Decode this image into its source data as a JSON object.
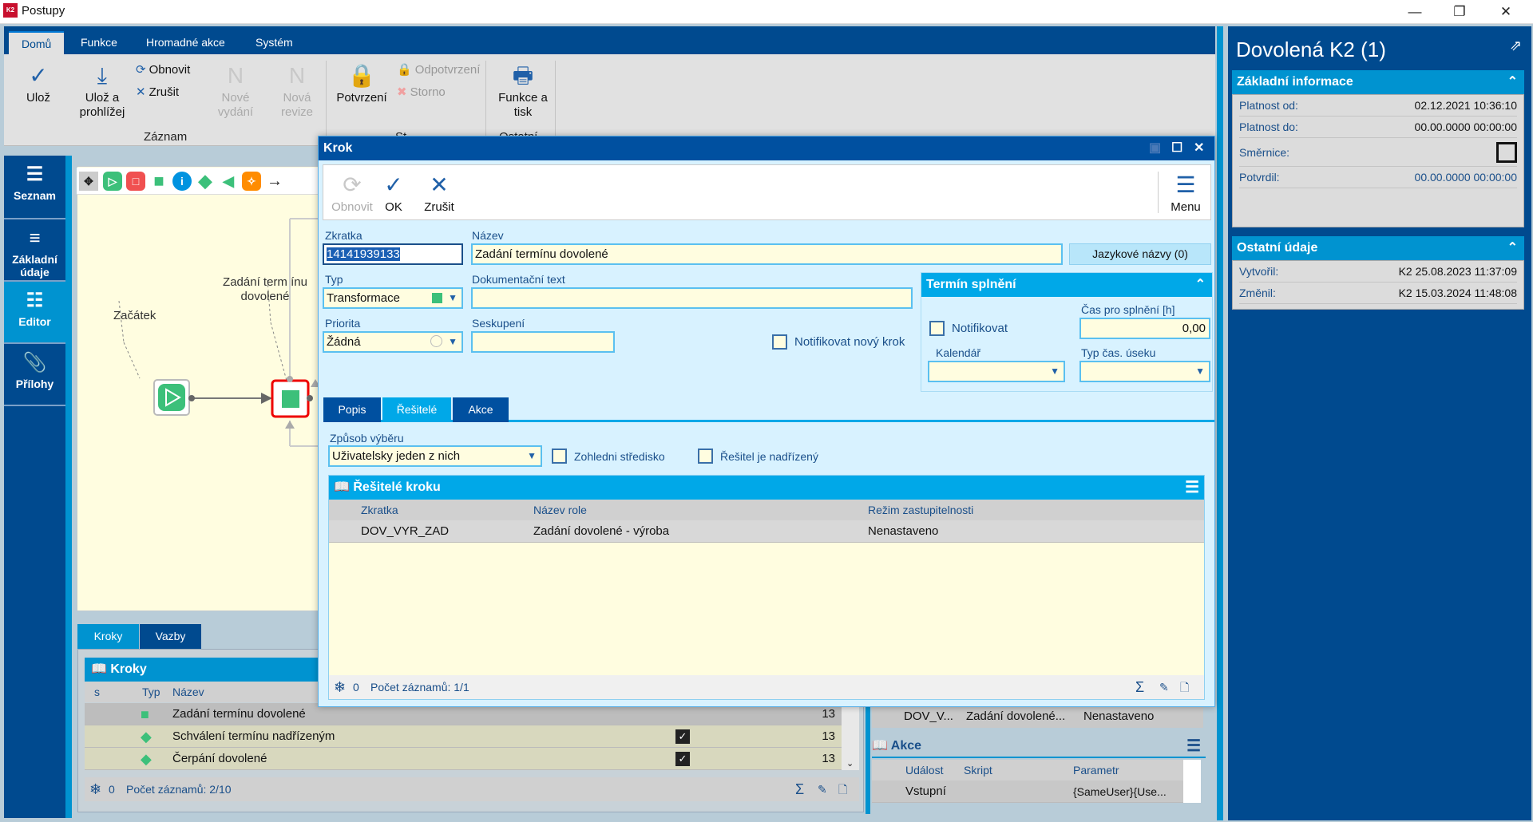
{
  "window": {
    "title": "Postupy",
    "logo": "K2"
  },
  "ribbon": {
    "tabs": [
      "Domů",
      "Funkce",
      "Hromadné akce",
      "Systém"
    ],
    "save": "Ulož",
    "save_view": [
      "Ulož a",
      "prohlížej"
    ],
    "refresh": "Obnovit",
    "cancel": "Zrušit",
    "new_edition": [
      "Nové",
      "vydání"
    ],
    "new_revision": [
      "Nová",
      "revize"
    ],
    "group_record": "Záznam",
    "confirm": "Potvrzení",
    "unconfirm": "Odpotvrzení",
    "storno": "Storno",
    "group_status": "St",
    "print": [
      "Funkce a",
      "tisk"
    ],
    "group_other": "Ostatní"
  },
  "sidebar": {
    "items": [
      {
        "label": "Seznam",
        "icon": "list-icon"
      },
      {
        "label": "Základní údaje",
        "icon": "bullet-list-icon"
      },
      {
        "label": "Editor",
        "icon": "tree-icon",
        "active": true
      },
      {
        "label": "Přílohy",
        "icon": "paperclip-icon"
      }
    ]
  },
  "diagram": {
    "nodes": [
      {
        "label": "Začátek",
        "type": "start"
      },
      {
        "label": "Zadání term ínu dovolené",
        "type": "transformation",
        "selected": true
      }
    ]
  },
  "bottom": {
    "tabs": [
      "Kroky",
      "Vazby"
    ],
    "grid_title": "Kroky",
    "columns": [
      "s",
      "",
      "Typ",
      "Název"
    ],
    "rows": [
      {
        "name": "Zadání termínu dovolené",
        "type": "square",
        "checked": false,
        "value": "13"
      },
      {
        "name": "Schválení termínu nadřízeným",
        "type": "diamond",
        "checked": true,
        "value": "13"
      },
      {
        "name": "Čerpání dovolené",
        "type": "diamond",
        "checked": true,
        "value": "13"
      }
    ],
    "filter_count": "0",
    "record_count": "Počet záznamů: 2/10"
  },
  "behind": {
    "row": [
      "DOV_V...",
      "Zadání dovolené...",
      "Nenastaveno"
    ],
    "akce_title": "Akce",
    "akce_columns": [
      "Událost",
      "Skript",
      "Parametr"
    ],
    "akce_row": [
      "Vstupní",
      "",
      "{SameUser}{Use..."
    ]
  },
  "right_panel": {
    "title": "Dovolená K2 (1)",
    "basic": {
      "title": "Základní informace",
      "platnost_od_label": "Platnost od:",
      "platnost_od": "02.12.2021 10:36:10",
      "platnost_do_label": "Platnost do:",
      "platnost_do": "00.00.0000 00:00:00",
      "smernice_label": "Směrnice:",
      "smernice": false,
      "potvrdil_label": "Potvrdil:",
      "potvrdil": "00.00.0000 00:00:00"
    },
    "other": {
      "title": "Ostatní údaje",
      "vytvoril_label": "Vytvořil:",
      "vytvoril": "K2 25.08.2023 11:37:09",
      "zmenil_label": "Změnil:",
      "zmenil": "K2 15.03.2024 11:48:08"
    }
  },
  "dialog": {
    "title": "Krok",
    "toolbar": {
      "refresh": "Obnovit",
      "ok": "OK",
      "cancel": "Zrušit",
      "menu": "Menu"
    },
    "zkratka_label": "Zkratka",
    "zkratka": "14141939133",
    "nazev_label": "Název",
    "nazev": "Zadání termínu dovolené",
    "lang_button": "Jazykové názvy (0)",
    "typ_label": "Typ",
    "typ": "Transformace",
    "doc_label": "Dokumentační text",
    "doc": "",
    "priorita_label": "Priorita",
    "priorita": "Žádná",
    "seskupeni_label": "Seskupení",
    "seskupeni": "",
    "notify_new": "Notifikovat nový krok",
    "deadline": {
      "title": "Termín splnění",
      "notify": "Notifikovat",
      "time_label": "Čas pro splnění [h]",
      "time": "0,00",
      "calendar_label": "Kalendář",
      "calendar": "",
      "period_label": "Typ čas. úseku",
      "period": ""
    },
    "tabs": [
      "Popis",
      "Řešitelé",
      "Akce"
    ],
    "method_label": "Způsob výběru",
    "method": "Uživatelsky jeden z nich",
    "consider_center": "Zohledni středisko",
    "is_superior": "Řešitel je nadřízený",
    "solvers": {
      "title": "Řešitelé kroku",
      "columns": [
        "Zkratka",
        "Název role",
        "Režim zastupitelnosti"
      ],
      "rows": [
        [
          "DOV_VYR_ZAD",
          "Zadání dovolené - výroba",
          "Nenastaveno"
        ]
      ],
      "filter_count": "0",
      "record_count": "Počet záznamů: 1/1"
    }
  }
}
